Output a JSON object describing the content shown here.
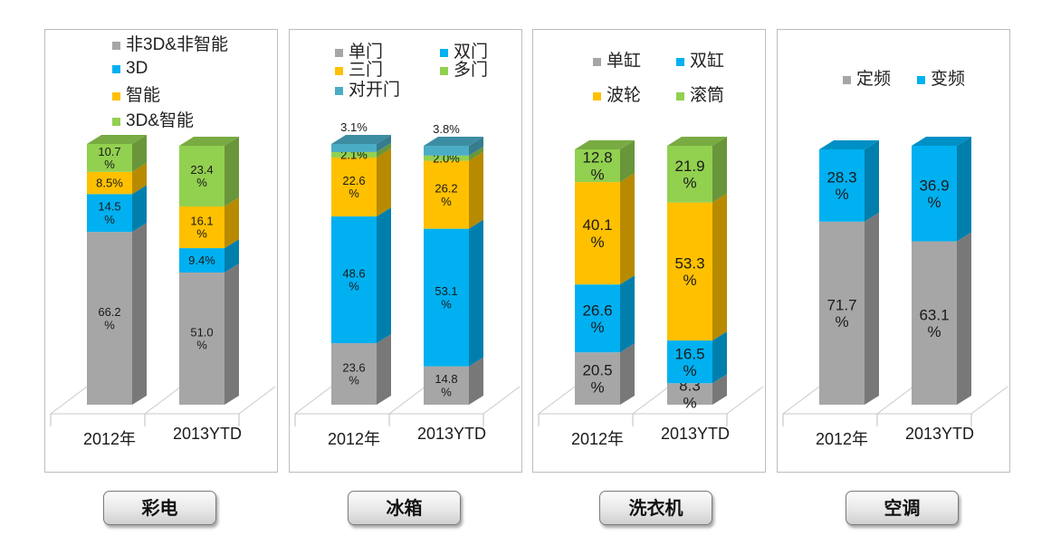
{
  "chart_data": [
    {
      "type": "bar",
      "stacked": true,
      "categories": [
        "2012年",
        "2013YTD"
      ],
      "series": [
        {
          "name": "非3D&非智能",
          "color": "#a6a6a6",
          "values": [
            66.2,
            51.0
          ],
          "labels": [
            "66.2\n%",
            "51.0\n%"
          ]
        },
        {
          "name": "3D",
          "color": "#00b0f0",
          "values": [
            14.5,
            9.4
          ],
          "labels": [
            "14.5\n%",
            "9.4%"
          ]
        },
        {
          "name": "智能",
          "color": "#ffc000",
          "values": [
            8.5,
            16.1
          ],
          "labels": [
            "8.5%",
            "16.1\n%"
          ]
        },
        {
          "name": "3D&智能",
          "color": "#92d050",
          "values": [
            10.7,
            23.4
          ],
          "labels": [
            "10.7\n%",
            "23.4\n%"
          ]
        }
      ],
      "ylim": [
        0,
        100
      ],
      "legend": "top",
      "label_size": 13
    },
    {
      "type": "bar",
      "stacked": true,
      "categories": [
        "2012年",
        "2013YTD"
      ],
      "series": [
        {
          "name": "单门",
          "color": "#a6a6a6",
          "values": [
            23.6,
            14.8
          ],
          "labels": [
            "23.6\n%",
            "14.8\n%"
          ]
        },
        {
          "name": "双门",
          "color": "#00b0f0",
          "values": [
            48.6,
            53.1
          ],
          "labels": [
            "48.6\n%",
            "53.1\n%"
          ]
        },
        {
          "name": "三门",
          "color": "#ffc000",
          "values": [
            22.6,
            26.2
          ],
          "labels": [
            "22.6\n%",
            "26.2\n%"
          ]
        },
        {
          "name": "多门",
          "color": "#92d050",
          "values": [
            2.1,
            2.0
          ],
          "labels": [
            "2.1%",
            "2.0%"
          ]
        },
        {
          "name": "对开门",
          "color": "#4bacc6",
          "values": [
            3.1,
            3.8
          ],
          "labels": [
            "3.1%",
            "3.8%"
          ]
        }
      ],
      "ylim": [
        0,
        100
      ],
      "legend": "top",
      "label_size": 13
    },
    {
      "type": "bar",
      "stacked": true,
      "categories": [
        "2012年",
        "2013YTD"
      ],
      "series": [
        {
          "name": "单缸",
          "color": "#a6a6a6",
          "values": [
            20.5,
            8.3
          ],
          "labels": [
            "20.5\n%",
            "8.3\n%"
          ]
        },
        {
          "name": "双缸",
          "color": "#00b0f0",
          "values": [
            26.6,
            16.5
          ],
          "labels": [
            "26.6\n%",
            "16.5\n%"
          ]
        },
        {
          "name": "波轮",
          "color": "#ffc000",
          "values": [
            40.1,
            53.3
          ],
          "labels": [
            "40.1\n%",
            "53.3\n%"
          ]
        },
        {
          "name": "滚筒",
          "color": "#92d050",
          "values": [
            12.8,
            21.9
          ],
          "labels": [
            "12.8\n%",
            "21.9\n%"
          ]
        }
      ],
      "ylim": [
        0,
        100
      ],
      "legend": "top",
      "label_size": 17
    },
    {
      "type": "bar",
      "stacked": true,
      "categories": [
        "2012年",
        "2013YTD"
      ],
      "series": [
        {
          "name": "定频",
          "color": "#a6a6a6",
          "values": [
            71.7,
            63.1
          ],
          "labels": [
            "71.7\n%",
            "63.1\n%"
          ]
        },
        {
          "name": "变频",
          "color": "#00b0f0",
          "values": [
            28.3,
            36.9
          ],
          "labels": [
            "28.3\n%",
            "36.9\n%"
          ]
        }
      ],
      "ylim": [
        0,
        100
      ],
      "legend": "top",
      "label_size": 17
    }
  ],
  "buttons": {
    "tv": "彩电",
    "fridge": "冰箱",
    "washer": "洗衣机",
    "ac": "空调"
  }
}
